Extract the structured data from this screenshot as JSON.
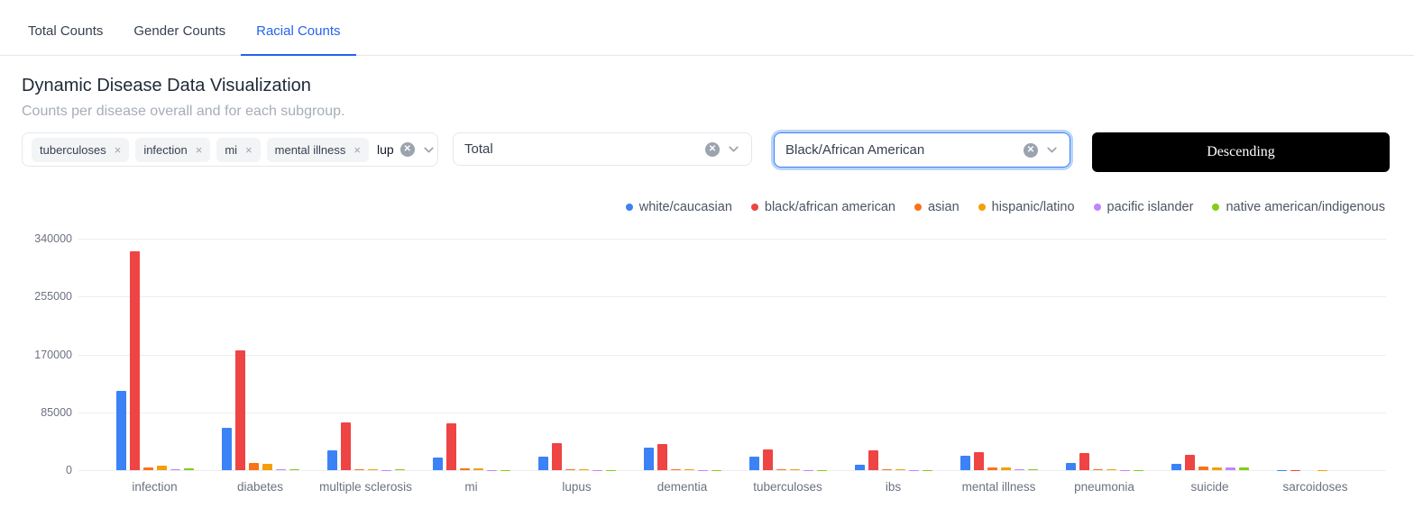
{
  "tabs": [
    {
      "label": "Total Counts",
      "active": false
    },
    {
      "label": "Gender Counts",
      "active": false
    },
    {
      "label": "Racial Counts",
      "active": true
    }
  ],
  "header": {
    "title": "Dynamic Disease Data Visualization",
    "subtitle": "Counts per disease overall and for each subgroup."
  },
  "controls": {
    "disease_multiselect": {
      "tags": [
        "tuberculoses",
        "infection",
        "mi",
        "mental illness"
      ],
      "typed_value": "lup",
      "clear_icon": "x-circle-icon",
      "dropdown_icon": "chevron-down-icon"
    },
    "count_select": {
      "value": "Total"
    },
    "subgroup_select": {
      "value": "Black/African American",
      "focused": true
    },
    "sort_button_label": "Descending"
  },
  "chart_data": {
    "type": "bar",
    "title": "",
    "xlabel": "",
    "ylabel": "",
    "categories": [
      "infection",
      "diabetes",
      "multiple sclerosis",
      "mi",
      "lupus",
      "dementia",
      "tuberculoses",
      "ibs",
      "mental illness",
      "pneumonia",
      "suicide",
      "sarcoidoses"
    ],
    "series": [
      {
        "name": "white/caucasian",
        "color": "#3b82f6",
        "values": [
          117000,
          62000,
          29000,
          18000,
          20000,
          33500,
          19500,
          8500,
          21500,
          10500,
          9500,
          300
        ]
      },
      {
        "name": "black/african american",
        "color": "#ef4444",
        "values": [
          321000,
          176000,
          70000,
          69000,
          40000,
          38500,
          30000,
          29000,
          26000,
          25500,
          23000,
          500
        ]
      },
      {
        "name": "asian",
        "color": "#f97316",
        "values": [
          3500,
          11000,
          1500,
          2500,
          1200,
          1500,
          1500,
          1000,
          4000,
          1000,
          5300,
          100
        ]
      },
      {
        "name": "hispanic/latino",
        "color": "#f59e0b",
        "values": [
          7000,
          9000,
          1500,
          2500,
          1000,
          1500,
          1500,
          1000,
          4500,
          1500,
          3500,
          150
        ]
      },
      {
        "name": "pacific islander",
        "color": "#c084fc",
        "values": [
          1300,
          1300,
          600,
          500,
          400,
          500,
          400,
          300,
          1200,
          400,
          4000,
          60
        ]
      },
      {
        "name": "native american/indigenous",
        "color": "#84cc16",
        "values": [
          2200,
          1500,
          2000,
          500,
          400,
          500,
          400,
          300,
          1500,
          500,
          4500,
          80
        ]
      }
    ],
    "ylim": [
      0,
      340000
    ],
    "yticks": [
      0,
      85000,
      170000,
      255000,
      340000
    ],
    "grid": true,
    "legend_position": "top-right"
  }
}
